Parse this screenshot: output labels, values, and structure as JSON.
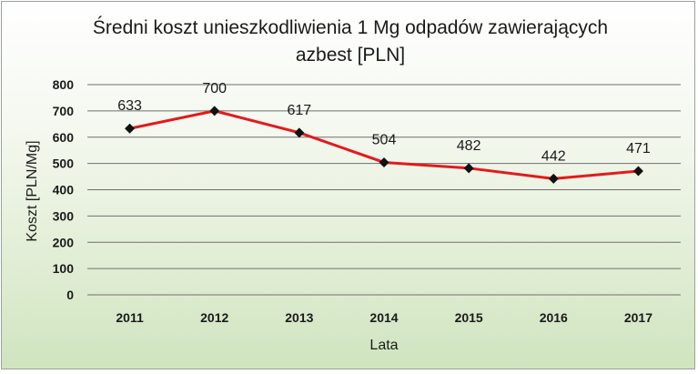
{
  "chart_data": {
    "type": "line",
    "title_line1": "Średni koszt unieszkodliwienia 1 Mg odpadów zawierających",
    "title_line2": "azbest [PLN]",
    "xlabel": "Lata",
    "ylabel": "Koszt [PLN/Mg]",
    "categories": [
      "2011",
      "2012",
      "2013",
      "2014",
      "2015",
      "2016",
      "2017"
    ],
    "series": [
      {
        "name": "Średni koszt",
        "values": [
          633,
          700,
          617,
          504,
          482,
          442,
          471
        ]
      }
    ],
    "ylim": [
      0,
      800
    ],
    "yticks": [
      0,
      100,
      200,
      300,
      400,
      500,
      600,
      700,
      800
    ],
    "grid": true,
    "line_color": "#e31a1c",
    "marker_color": "#111111"
  }
}
